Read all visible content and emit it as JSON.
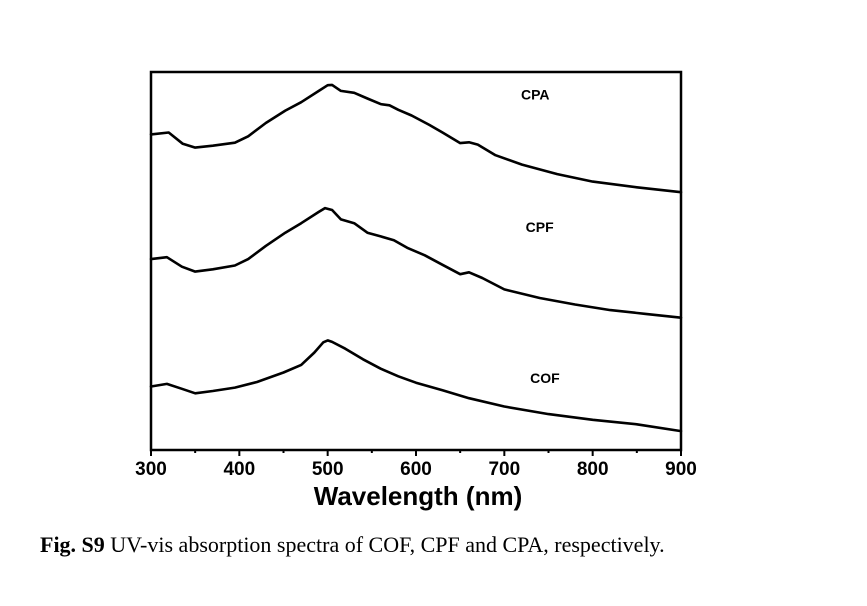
{
  "chart_data": {
    "type": "line",
    "title": "",
    "xlabel": "Wavelength (nm)",
    "ylabel": "",
    "xlim": [
      300,
      900
    ],
    "ylim": [
      0,
      100
    ],
    "xticks": [
      300,
      400,
      500,
      600,
      700,
      800,
      900
    ],
    "xtick_labels": [
      "300",
      "400",
      "500",
      "600",
      "700",
      "800",
      "900"
    ],
    "xminor_ticks": [
      350,
      450,
      550,
      650,
      750,
      850
    ],
    "yticks_shown": false,
    "grid": false,
    "legend": "none (inline labels)",
    "units_note": "y is arbitrary absorbance, offset stacked (0 = bottom of axes, 100 = top of axes)",
    "series": [
      {
        "name": "CPA",
        "label_at": [
          735,
          94
        ],
        "x": [
          300,
          320,
          336,
          350,
          370,
          395,
          410,
          430,
          452,
          470,
          490,
          500,
          505,
          515,
          530,
          545,
          560,
          570,
          580,
          595,
          615,
          630,
          650,
          660,
          670,
          690,
          720,
          760,
          800,
          850,
          900
        ],
        "y": [
          83.5,
          84.0,
          81.0,
          80.0,
          80.5,
          81.3,
          83.0,
          86.5,
          89.8,
          92.0,
          95.0,
          96.5,
          96.6,
          95.0,
          94.5,
          93.0,
          91.5,
          91.2,
          90.0,
          88.5,
          86.0,
          84.0,
          81.2,
          81.4,
          80.8,
          78.0,
          75.5,
          73.0,
          71.0,
          69.5,
          68.2
        ]
      },
      {
        "name": "CPF",
        "label_at": [
          740,
          59
        ],
        "x": [
          300,
          318,
          335,
          350,
          370,
          395,
          410,
          430,
          452,
          470,
          490,
          497,
          505,
          515,
          530,
          545,
          560,
          575,
          590,
          610,
          630,
          650,
          660,
          675,
          700,
          740,
          780,
          820,
          860,
          900
        ],
        "y": [
          50.5,
          51.0,
          48.5,
          47.2,
          47.8,
          48.8,
          50.5,
          54.0,
          57.5,
          60.0,
          63.0,
          64.0,
          63.5,
          61.0,
          60.0,
          57.5,
          56.5,
          55.5,
          53.5,
          51.5,
          49.0,
          46.5,
          47.0,
          45.5,
          42.5,
          40.2,
          38.5,
          37.0,
          36.0,
          35.0
        ]
      },
      {
        "name": "COF",
        "label_at": [
          746,
          19
        ],
        "x": [
          300,
          318,
          335,
          350,
          370,
          395,
          420,
          450,
          470,
          485,
          495,
          500,
          505,
          520,
          540,
          560,
          580,
          600,
          630,
          660,
          700,
          750,
          800,
          850,
          900
        ],
        "y": [
          16.8,
          17.5,
          16.2,
          15.0,
          15.6,
          16.5,
          18.0,
          20.5,
          22.5,
          25.8,
          28.5,
          29.0,
          28.6,
          26.8,
          24.0,
          21.5,
          19.5,
          17.8,
          15.8,
          13.7,
          11.5,
          9.5,
          8.0,
          6.8,
          5.0
        ]
      }
    ]
  },
  "caption": {
    "label": "Fig. S9",
    "text": " UV-vis absorption spectra of COF, CPF and CPA, respectively."
  }
}
